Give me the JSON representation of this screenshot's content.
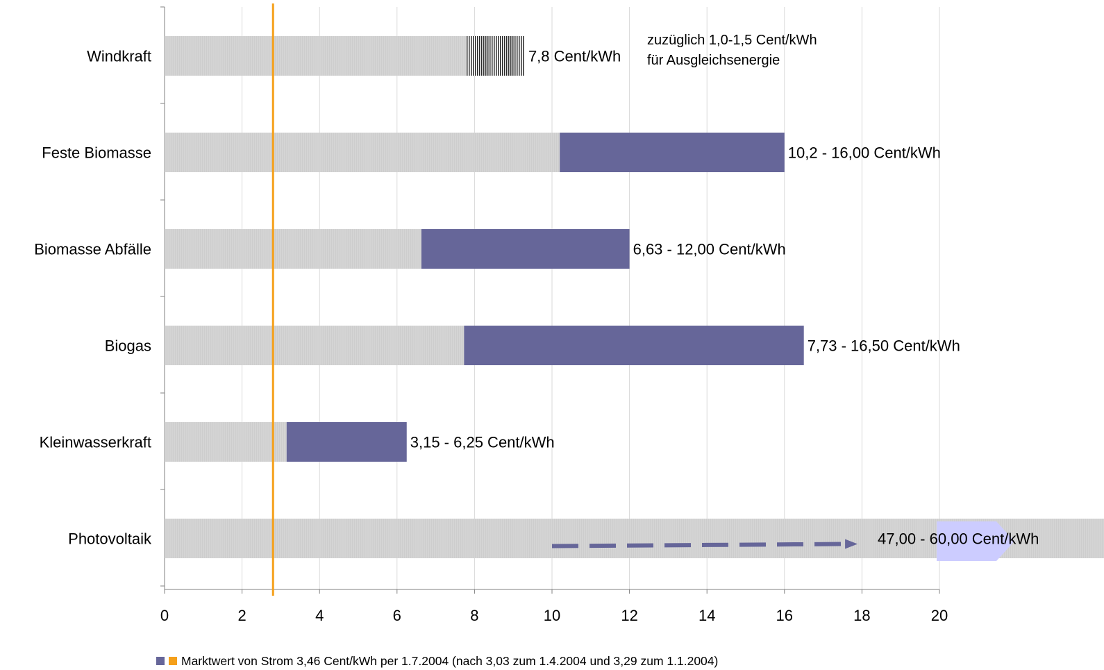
{
  "chart_data": {
    "type": "bar",
    "orientation": "horizontal",
    "categories": [
      "Windkraft",
      "Feste Biomasse",
      "Biomasse Abfälle",
      "Biogas",
      "Kleinwasserkraft",
      "Photovoltaik"
    ],
    "rows": [
      {
        "category": "Windkraft",
        "low": 7.8,
        "high": 9.3,
        "style": "hatched",
        "label": "7,8 Cent/kWh"
      },
      {
        "category": "Feste Biomasse",
        "low": 10.2,
        "high": 16.0,
        "style": "solid",
        "label": "10,2 - 16,00 Cent/kWh"
      },
      {
        "category": "Biomasse Abfälle",
        "low": 6.63,
        "high": 12.0,
        "style": "solid",
        "label": "6,63 - 12,00 Cent/kWh"
      },
      {
        "category": "Biogas",
        "low": 7.73,
        "high": 16.5,
        "style": "solid",
        "label": "7,73 - 16,50 Cent/kWh"
      },
      {
        "category": "Kleinwasserkraft",
        "low": 3.15,
        "high": 6.25,
        "style": "solid",
        "label": "3,15 - 6,25 Cent/kWh"
      },
      {
        "category": "Photovoltaik",
        "low": 47.0,
        "high": 60.0,
        "style": "off-scale",
        "label": "47,00 - 60,00 Cent/kWh"
      }
    ],
    "x_ticks": [
      0,
      2,
      4,
      6,
      8,
      10,
      12,
      14,
      16,
      18,
      20
    ],
    "xlim": [
      0,
      20
    ],
    "grid": "vertical",
    "reference_line": {
      "value": 2.8,
      "color": "#F5A01A"
    },
    "annotation_lines": [
      "zuzüglich 1,0-1,5 Cent/kWh",
      "für Ausgleichsenergie"
    ],
    "legend": {
      "placement": "bottom",
      "text": "Marktwert von Strom 3,46 Cent/kWh per 1.7.2004 (nach 3,03 zum 1.4.2004 und 3,29 zum 1.1.2004)"
    },
    "colors": {
      "base": "#D4D4D4",
      "range": "#666699",
      "reference": "#F5A01A",
      "arrow_head": "#CCCCFF",
      "grid": "#D9D9D9",
      "axis": "#808080"
    }
  }
}
